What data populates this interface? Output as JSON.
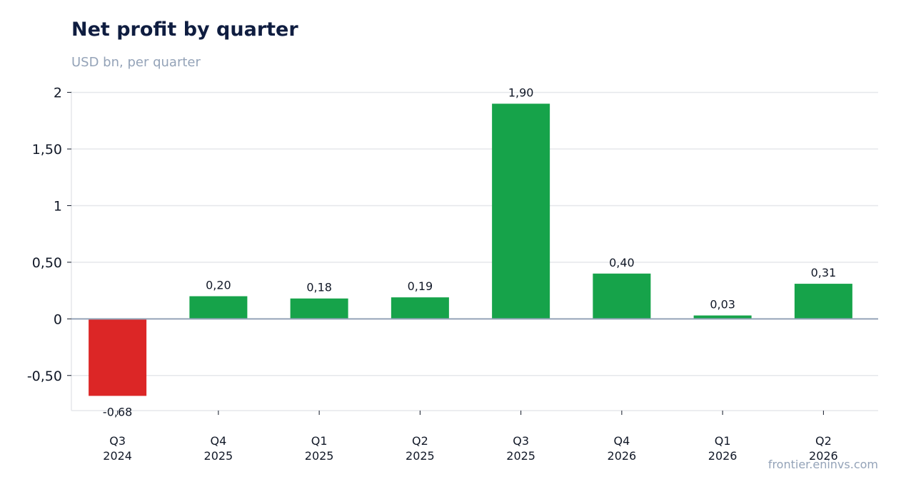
{
  "chart_data": {
    "type": "bar",
    "title": "Net profit by quarter",
    "subtitle": "USD bn, per quarter",
    "source": "frontier.eninvs.com",
    "categories": [
      [
        "Q3",
        "2024"
      ],
      [
        "Q4",
        "2025"
      ],
      [
        "Q1",
        "2025"
      ],
      [
        "Q2",
        "2025"
      ],
      [
        "Q3",
        "2025"
      ],
      [
        "Q4",
        "2026"
      ],
      [
        "Q1",
        "2026"
      ],
      [
        "Q2",
        "2026"
      ]
    ],
    "values": [
      -0.68,
      0.2,
      0.18,
      0.19,
      1.9,
      0.4,
      0.03,
      0.31
    ],
    "value_labels": [
      "-0,68",
      "0,20",
      "0,18",
      "0,19",
      "1,90",
      "0,40",
      "0,03",
      "0,31"
    ],
    "yticks": [
      2,
      1.5,
      1,
      0.5,
      0,
      -0.5
    ],
    "ytick_labels": [
      "2",
      "1,50",
      "1",
      "0,50",
      "0",
      "-0,50"
    ],
    "ylim": [
      -0.81,
      2.01
    ],
    "colors": {
      "positive": "#16a34a",
      "negative": "#dc2626",
      "grid": "#e5e7eb",
      "zero_line": "#94a3b8",
      "axis": "#e5e7eb"
    },
    "grid": true
  }
}
